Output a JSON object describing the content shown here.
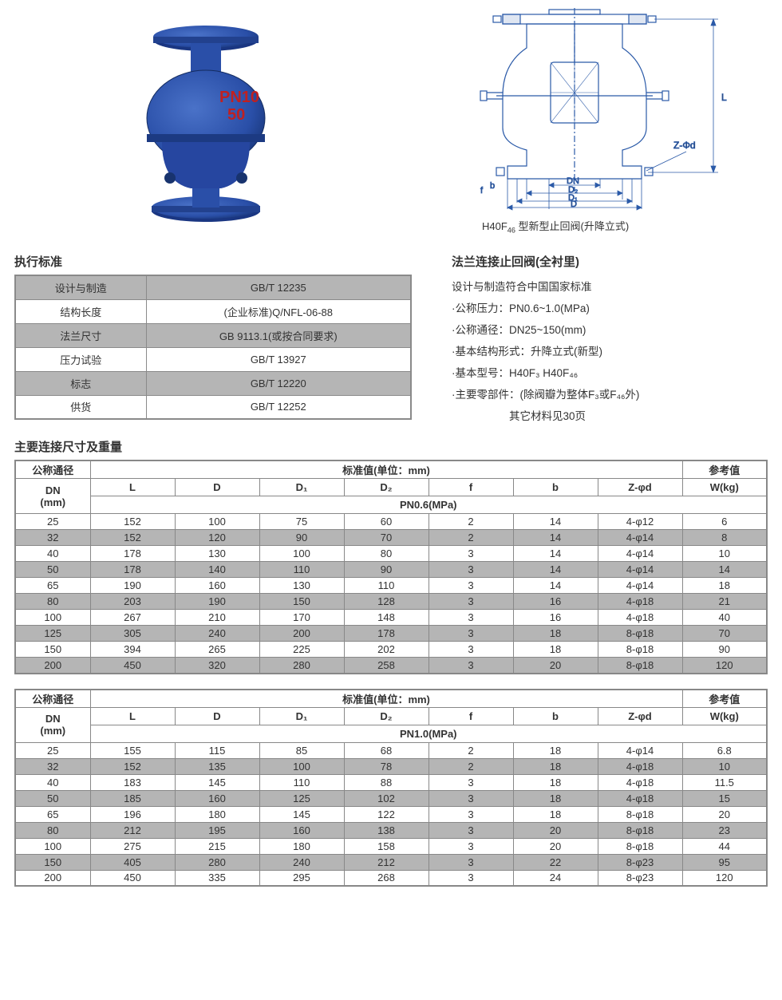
{
  "product_photo": {
    "body_color": "#2a4fa8",
    "shadow_color": "#1a3682",
    "text_color": "#c02020",
    "marking_line1": "PN10",
    "marking_line2": "50"
  },
  "diagram": {
    "caption_prefix": "H40F",
    "caption_sub": "46",
    "caption_suffix": " 型新型止回阀(升降立式)",
    "line_color": "#2b5aa8",
    "hatch_color": "#3a5a99",
    "labels": {
      "DN": "DN",
      "D2": "D₂",
      "D1": "D₁",
      "D": "D",
      "L": "L",
      "b": "b",
      "f": "f",
      "Zd": "Z-Φd"
    }
  },
  "standards": {
    "title": "执行标准",
    "rows": [
      {
        "label": "设计与制造",
        "value": "GB/T 12235"
      },
      {
        "label": "结构长度",
        "value": "(企业标准)Q/NFL-06-88"
      },
      {
        "label": "法兰尺寸",
        "value": "GB 9113.1(或按合同要求)"
      },
      {
        "label": "压力试验",
        "value": "GB/T 13927"
      },
      {
        "label": "标志",
        "value": "GB/T 12220"
      },
      {
        "label": "供货",
        "value": "GB/T 12252"
      }
    ],
    "shade_colors": {
      "even": "#b5b5b5",
      "odd": "#ffffff"
    }
  },
  "specs": {
    "title": "法兰连接止回阀(全衬里)",
    "intro": "设计与制造符合中国国家标准",
    "lines": [
      "·公称压力：PN0.6~1.0(MPa)",
      "·公称通径：DN25~150(mm)",
      "·基本结构形式：升降立式(新型)",
      "·基本型号：H40F₃ H40F₄₆",
      "·主要零部件：(除阀瓣为整体F₃或F₄₆外)"
    ],
    "tail": "其它材料见30页"
  },
  "dims_title": "主要连接尺寸及重量",
  "dim_headers": {
    "nominal": "公称通径",
    "std_vals": "标准值(单位：mm)",
    "ref": "参考值",
    "dn": "DN",
    "dn_unit": "(mm)",
    "cols": [
      "L",
      "D",
      "D₁",
      "D₂",
      "f",
      "b",
      "Z-φd"
    ],
    "wkg": "W(kg)"
  },
  "table1": {
    "pn_label": "PN0.6(MPa)",
    "rows": [
      [
        "25",
        "152",
        "100",
        "75",
        "60",
        "2",
        "14",
        "4-φ12",
        "6"
      ],
      [
        "32",
        "152",
        "120",
        "90",
        "70",
        "2",
        "14",
        "4-φ14",
        "8"
      ],
      [
        "40",
        "178",
        "130",
        "100",
        "80",
        "3",
        "14",
        "4-φ14",
        "10"
      ],
      [
        "50",
        "178",
        "140",
        "110",
        "90",
        "3",
        "14",
        "4-φ14",
        "14"
      ],
      [
        "65",
        "190",
        "160",
        "130",
        "110",
        "3",
        "14",
        "4-φ14",
        "18"
      ],
      [
        "80",
        "203",
        "190",
        "150",
        "128",
        "3",
        "16",
        "4-φ18",
        "21"
      ],
      [
        "100",
        "267",
        "210",
        "170",
        "148",
        "3",
        "16",
        "4-φ18",
        "40"
      ],
      [
        "125",
        "305",
        "240",
        "200",
        "178",
        "3",
        "18",
        "8-φ18",
        "70"
      ],
      [
        "150",
        "394",
        "265",
        "225",
        "202",
        "3",
        "18",
        "8-φ18",
        "90"
      ],
      [
        "200",
        "450",
        "320",
        "280",
        "258",
        "3",
        "20",
        "8-φ18",
        "120"
      ]
    ]
  },
  "table2": {
    "pn_label": "PN1.0(MPa)",
    "rows": [
      [
        "25",
        "155",
        "115",
        "85",
        "68",
        "2",
        "18",
        "4-φ14",
        "6.8"
      ],
      [
        "32",
        "152",
        "135",
        "100",
        "78",
        "2",
        "18",
        "4-φ18",
        "10"
      ],
      [
        "40",
        "183",
        "145",
        "110",
        "88",
        "3",
        "18",
        "4-φ18",
        "11.5"
      ],
      [
        "50",
        "185",
        "160",
        "125",
        "102",
        "3",
        "18",
        "4-φ18",
        "15"
      ],
      [
        "65",
        "196",
        "180",
        "145",
        "122",
        "3",
        "18",
        "8-φ18",
        "20"
      ],
      [
        "80",
        "212",
        "195",
        "160",
        "138",
        "3",
        "20",
        "8-φ18",
        "23"
      ],
      [
        "100",
        "275",
        "215",
        "180",
        "158",
        "3",
        "20",
        "8-φ18",
        "44"
      ],
      [
        "150",
        "405",
        "280",
        "240",
        "212",
        "3",
        "22",
        "8-φ23",
        "95"
      ],
      [
        "200",
        "450",
        "335",
        "295",
        "268",
        "3",
        "24",
        "8-φ23",
        "120"
      ]
    ]
  }
}
